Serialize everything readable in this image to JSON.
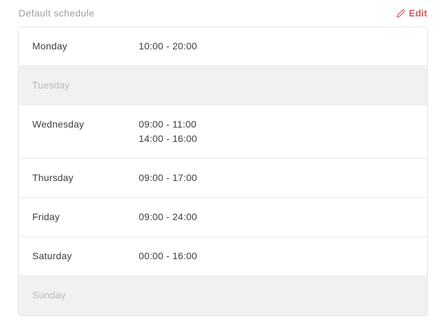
{
  "header": {
    "title": "Default schedule",
    "edit_label": "Edit",
    "edit_icon": "pencil-icon"
  },
  "colors": {
    "accent": "#c7605b",
    "title_text": "#9e9e9e",
    "day_text": "#3e3e42",
    "disabled_text": "#b9b9b9",
    "disabled_row_bg": "#f1f1f1",
    "panel_border": "#e4e4e4",
    "row_separator": "#f1f1f1"
  },
  "schedule": {
    "rows": [
      {
        "day": "Monday",
        "times": [
          "10:00 - 20:00"
        ],
        "enabled": true
      },
      {
        "day": "Tuesday",
        "times": [],
        "enabled": false
      },
      {
        "day": "Wednesday",
        "times": [
          "09:00 - 11:00",
          "14:00 - 16:00"
        ],
        "enabled": true
      },
      {
        "day": "Thursday",
        "times": [
          "09:00 - 17:00"
        ],
        "enabled": true
      },
      {
        "day": "Friday",
        "times": [
          "09:00 - 24:00"
        ],
        "enabled": true
      },
      {
        "day": "Saturday",
        "times": [
          "00:00 - 16:00"
        ],
        "enabled": true
      },
      {
        "day": "Sunday",
        "times": [],
        "enabled": false
      }
    ]
  }
}
